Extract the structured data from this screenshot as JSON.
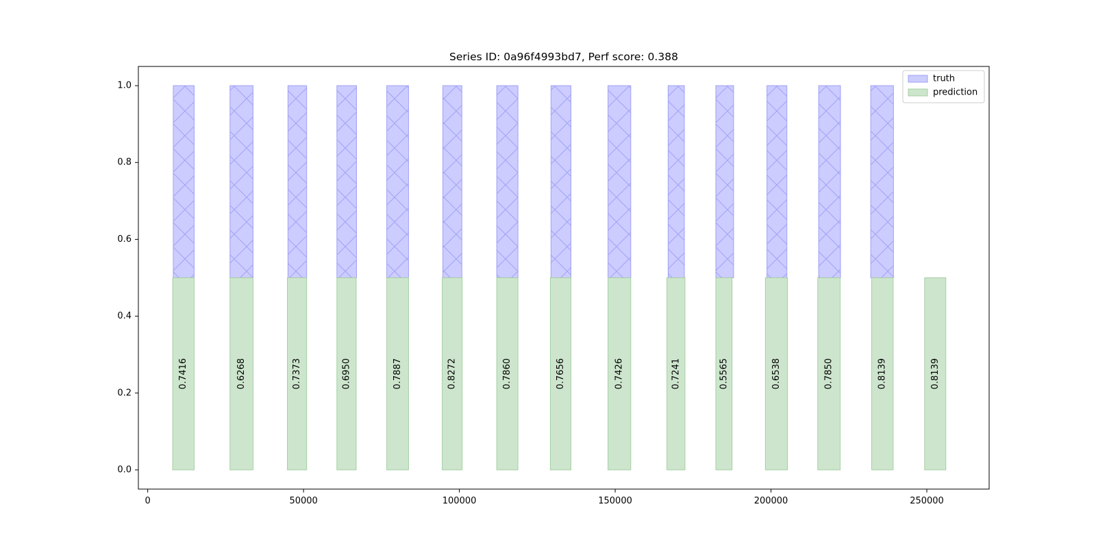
{
  "chart_data": {
    "type": "bar",
    "title": "Series ID: 0a96f4993bd7, Perf score: 0.388",
    "xlabel": "",
    "ylabel": "",
    "xlim": [
      -3000,
      270000
    ],
    "ylim": [
      -0.05,
      1.05
    ],
    "xticks": [
      0,
      50000,
      100000,
      150000,
      200000,
      250000
    ],
    "xtick_labels": [
      "0",
      "50000",
      "100000",
      "150000",
      "200000",
      "250000"
    ],
    "yticks": [
      0.0,
      0.2,
      0.4,
      0.6,
      0.8,
      1.0
    ],
    "ytick_labels": [
      "0.0",
      "0.2",
      "0.4",
      "0.6",
      "0.8",
      "1.0"
    ],
    "grid": false,
    "legend_position": "top-right",
    "colors": {
      "truth": "#ccccff",
      "truth_edge": "#9f9ff5",
      "prediction": "#cde5cd",
      "prediction_edge": "#a4cfa4"
    },
    "series": [
      {
        "name": "truth",
        "y0": 0.5,
        "y1": 1.0,
        "hatch": "x",
        "intervals": [
          [
            8200,
            14900
          ],
          [
            26400,
            33800
          ],
          [
            45000,
            51000
          ],
          [
            60700,
            67000
          ],
          [
            76700,
            83700
          ],
          [
            94700,
            100800
          ],
          [
            112000,
            118800
          ],
          [
            129400,
            135800
          ],
          [
            147700,
            155000
          ],
          [
            167000,
            172200
          ],
          [
            182300,
            188000
          ],
          [
            198700,
            205100
          ],
          [
            215300,
            222300
          ],
          [
            232000,
            239300
          ]
        ]
      },
      {
        "name": "prediction",
        "y0": 0.0,
        "y1": 0.5,
        "intervals": [
          [
            8000,
            14900
          ],
          [
            26400,
            33800
          ],
          [
            44800,
            51000
          ],
          [
            60700,
            66900
          ],
          [
            76700,
            83700
          ],
          [
            94500,
            100900
          ],
          [
            112000,
            118800
          ],
          [
            129200,
            135800
          ],
          [
            147700,
            155000
          ],
          [
            166600,
            172400
          ],
          [
            182300,
            187500
          ],
          [
            198200,
            205300
          ],
          [
            215000,
            222200
          ],
          [
            232300,
            239200
          ],
          [
            249300,
            256100
          ]
        ],
        "scores": [
          "0.7416",
          "0.6268",
          "0.7373",
          "0.6950",
          "0.7887",
          "0.8272",
          "0.7860",
          "0.7656",
          "0.7426",
          "0.7241",
          "0.5565",
          "0.6538",
          "0.7850",
          "0.8139",
          "0.8139"
        ]
      }
    ]
  }
}
